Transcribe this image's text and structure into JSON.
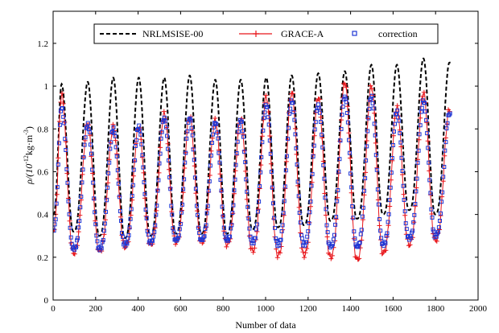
{
  "chart_data": {
    "type": "line",
    "xlabel": "Number of data",
    "ylabel": {
      "main": "ρ/(10",
      "sup1": "-12",
      "mid": "kg·m",
      "sup2": "-3",
      "end": ")"
    },
    "xlim": [
      0,
      2000
    ],
    "ylim": [
      0,
      1.35
    ],
    "xticks": [
      0,
      200,
      400,
      600,
      800,
      1000,
      1200,
      1400,
      1600,
      1800,
      2000
    ],
    "yticks": [
      0,
      0.2,
      0.4,
      0.6,
      0.8,
      1.0,
      1.2
    ],
    "ytick_labels": [
      "0",
      "0.2",
      "0.4",
      "0.6",
      "0.8",
      "1",
      "1.2"
    ],
    "legend_position": "top-center",
    "grid": false,
    "peak_x": [
      40,
      163,
      283,
      403,
      523,
      643,
      763,
      883,
      1003,
      1123,
      1248,
      1373,
      1498,
      1618,
      1743,
      1865
    ],
    "series": [
      {
        "name": "NRLMSISE-00",
        "style": "dashed",
        "color": "#000000",
        "peaks": [
          1.01,
          1.02,
          1.04,
          1.04,
          1.04,
          1.05,
          1.03,
          1.03,
          1.04,
          1.05,
          1.06,
          1.07,
          1.1,
          1.1,
          1.13,
          1.11
        ],
        "troughs": [
          0.4,
          0.32,
          0.3,
          0.29,
          0.3,
          0.31,
          0.31,
          0.31,
          0.33,
          0.34,
          0.35,
          0.37,
          0.38,
          0.4,
          0.42,
          0.4
        ]
      },
      {
        "name": "GRACE-A",
        "style": "solid-plus",
        "color": "#e8161b",
        "peaks": [
          0.96,
          0.83,
          0.81,
          0.81,
          0.87,
          0.86,
          0.84,
          0.85,
          0.95,
          0.97,
          0.95,
          1.02,
          1.0,
          0.9,
          0.97,
          0.89
        ],
        "troughs": [
          0.33,
          0.22,
          0.23,
          0.25,
          0.26,
          0.27,
          0.27,
          0.26,
          0.23,
          0.21,
          0.21,
          0.2,
          0.19,
          0.22,
          0.26,
          0.28
        ]
      },
      {
        "name": "correction",
        "style": "square-markers",
        "color": "#1f36d4",
        "peaks": [
          0.9,
          0.82,
          0.8,
          0.81,
          0.85,
          0.85,
          0.83,
          0.84,
          0.91,
          0.93,
          0.91,
          0.95,
          0.95,
          0.88,
          0.93,
          0.87
        ],
        "troughs": [
          0.33,
          0.24,
          0.24,
          0.26,
          0.27,
          0.28,
          0.28,
          0.28,
          0.27,
          0.26,
          0.26,
          0.25,
          0.25,
          0.26,
          0.29,
          0.3
        ]
      }
    ]
  },
  "colors": {
    "axis": "#000000",
    "background": "#ffffff"
  }
}
